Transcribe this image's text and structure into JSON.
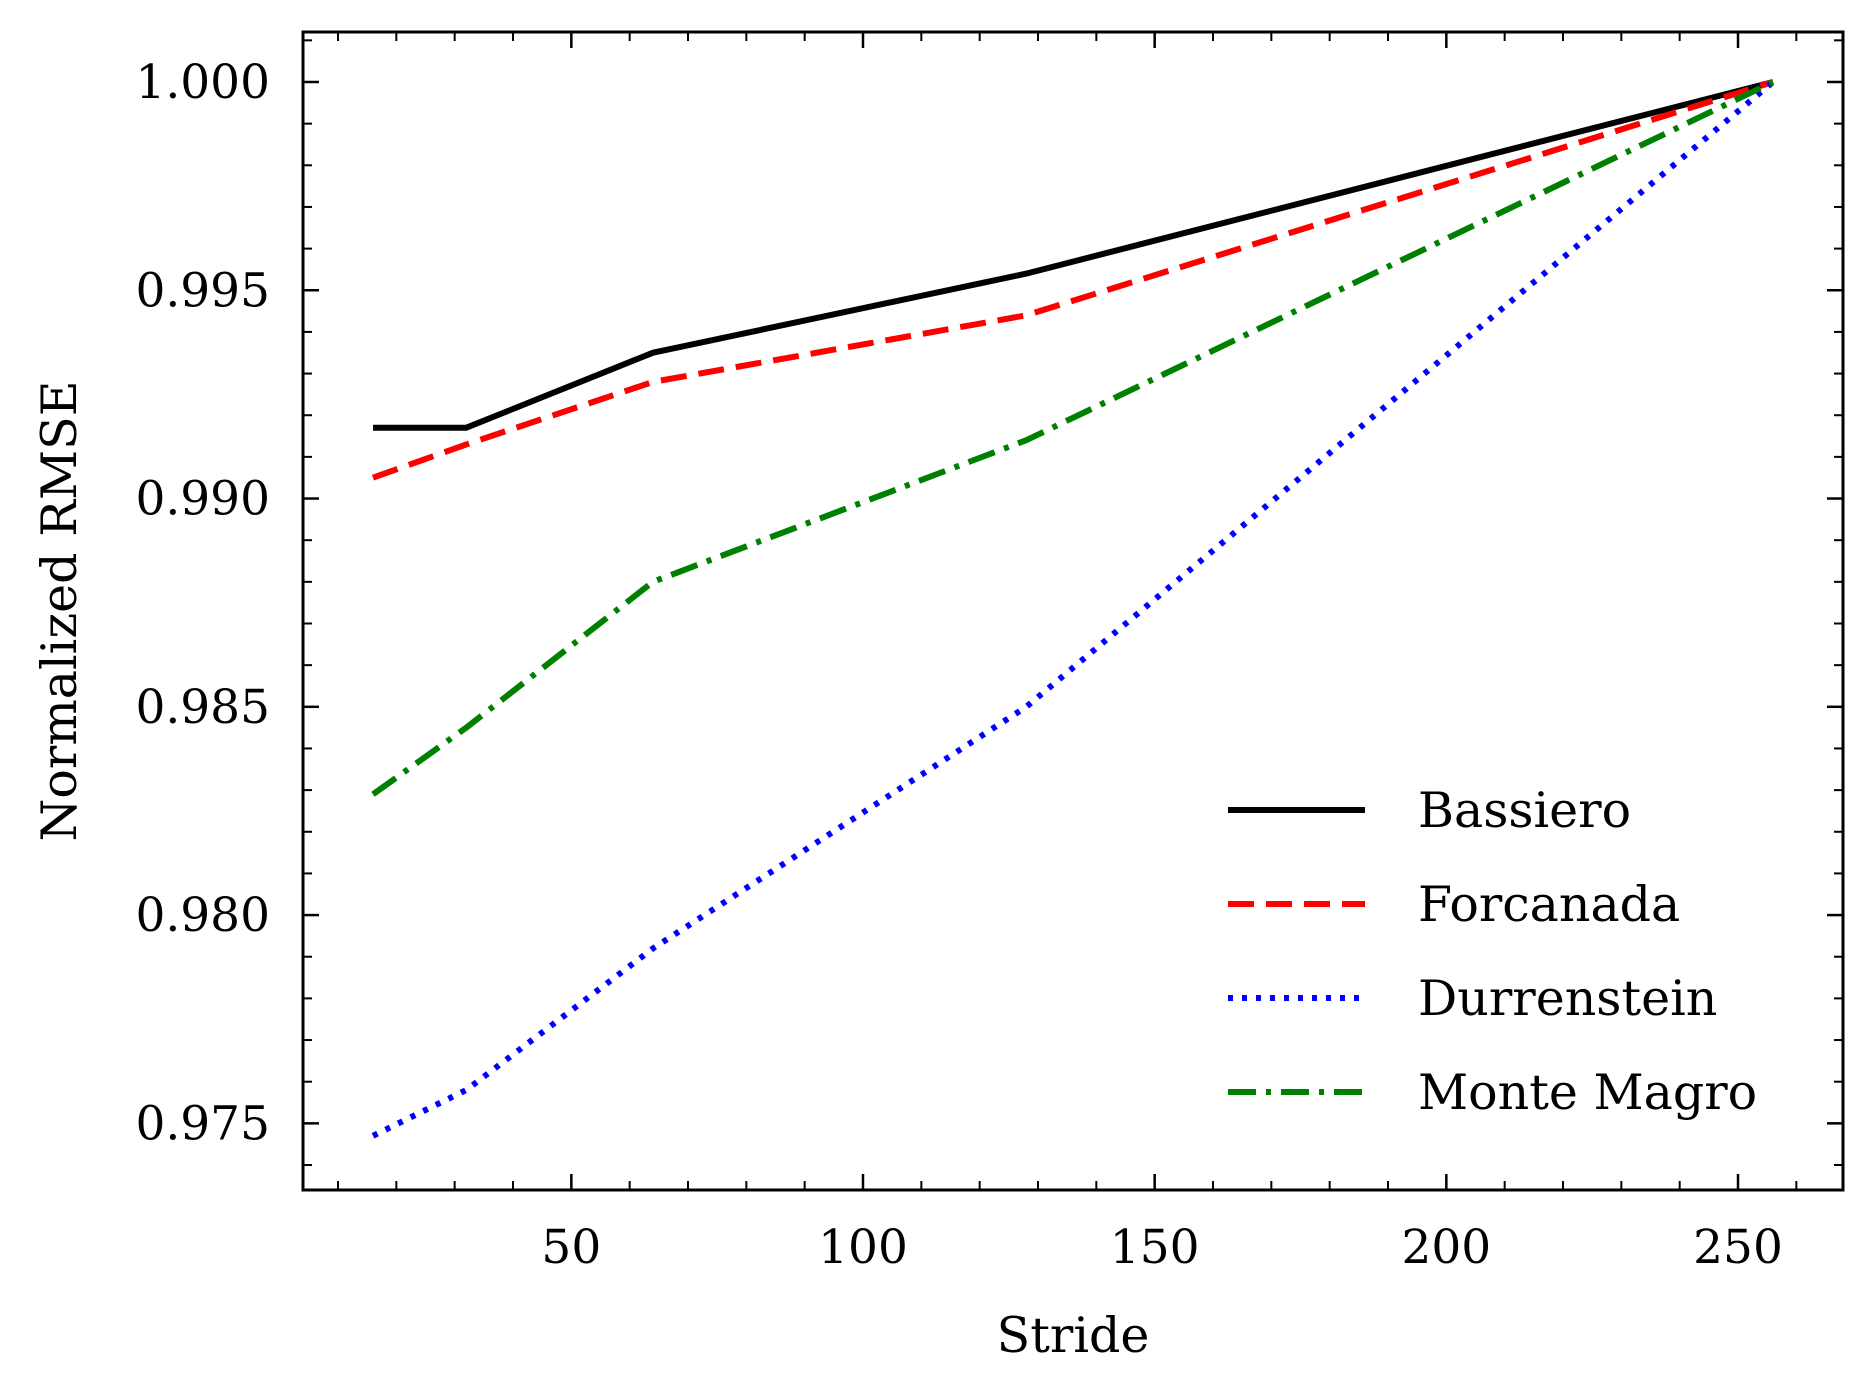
{
  "chart_data": {
    "type": "line",
    "title": "",
    "xlabel": "Stride",
    "ylabel": "Normalized RMSE",
    "xlim": [
      4,
      268
    ],
    "ylim": [
      0.9734,
      1.0012
    ],
    "xticks": [
      50,
      100,
      150,
      200,
      250
    ],
    "xtick_labels": [
      "50",
      "100",
      "150",
      "200",
      "250"
    ],
    "yticks": [
      0.975,
      0.98,
      0.985,
      0.99,
      0.995,
      1.0
    ],
    "ytick_labels": [
      "0.975",
      "0.980",
      "0.985",
      "0.990",
      "0.995",
      "1.000"
    ],
    "x": [
      16,
      32,
      64,
      128,
      256
    ],
    "grid": false,
    "legend_position": "lower-right",
    "series": [
      {
        "name": "Bassiero",
        "color": "#000000",
        "line_style": "solid",
        "values": [
          0.9917,
          0.9917,
          0.9935,
          0.9954,
          1.0
        ]
      },
      {
        "name": "Forcanada",
        "color": "#ff0000",
        "line_style": "dashed",
        "values": [
          0.9905,
          0.9913,
          0.9928,
          0.9944,
          1.0
        ]
      },
      {
        "name": "Durrenstein",
        "color": "#0000ff",
        "line_style": "dotted",
        "values": [
          0.9747,
          0.9758,
          0.9792,
          0.985,
          1.0
        ]
      },
      {
        "name": "Monte Magro",
        "color": "#008000",
        "line_style": "dashdot",
        "values": [
          0.9829,
          0.9845,
          0.988,
          0.9914,
          1.0
        ]
      }
    ]
  }
}
